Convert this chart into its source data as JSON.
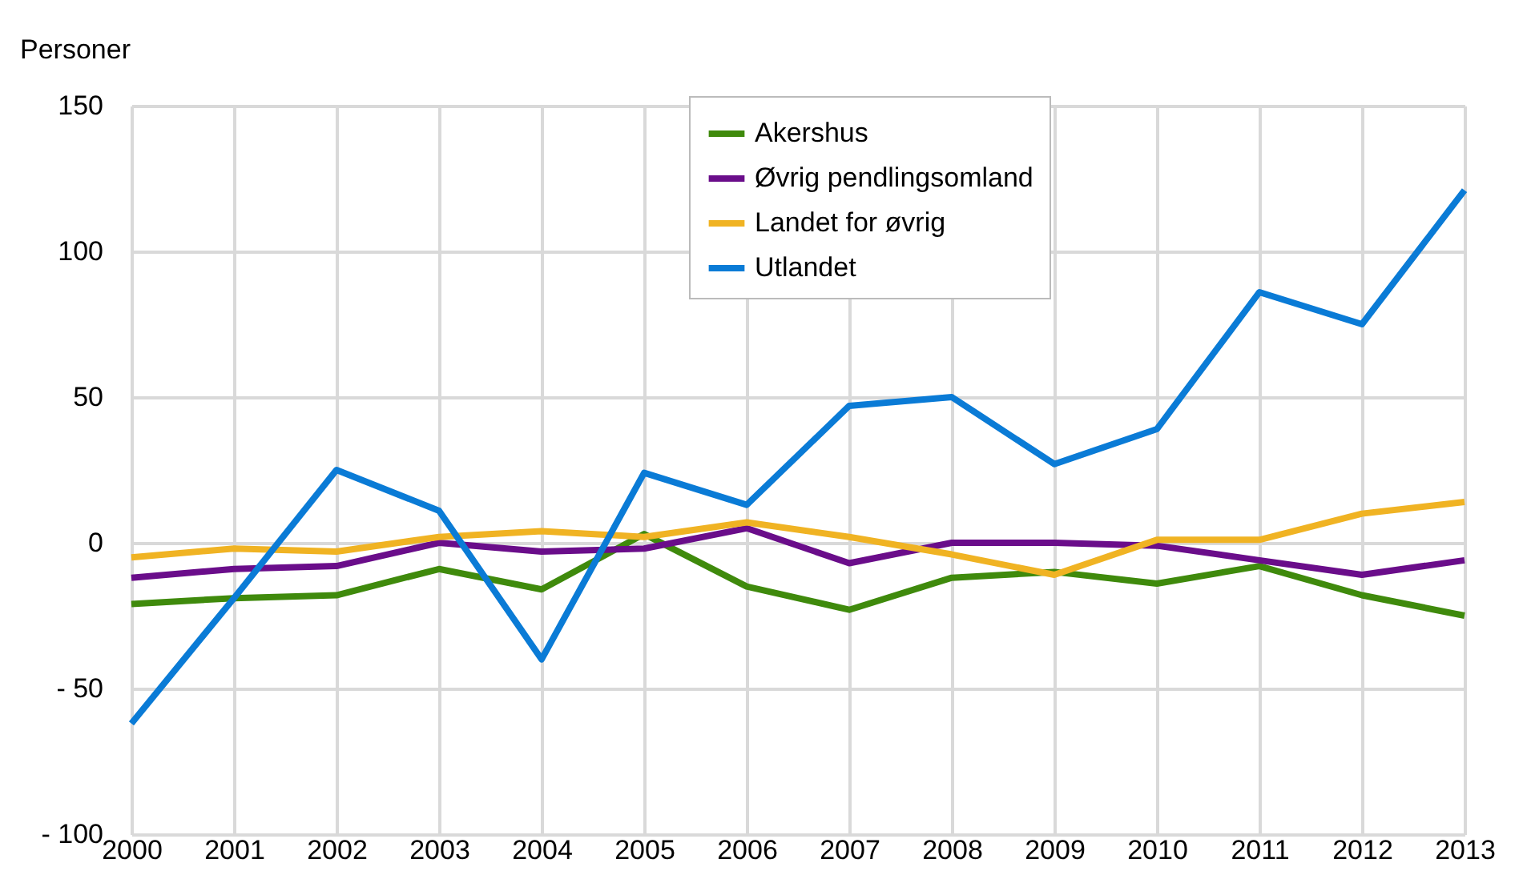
{
  "chart_data": {
    "type": "line",
    "ylabel": "Personer",
    "x": [
      2000,
      2001,
      2002,
      2003,
      2004,
      2005,
      2006,
      2007,
      2008,
      2009,
      2010,
      2011,
      2012,
      2013
    ],
    "xlim": [
      2000,
      2013
    ],
    "xticks": [
      2000,
      2001,
      2002,
      2003,
      2004,
      2005,
      2006,
      2007,
      2008,
      2009,
      2010,
      2011,
      2012,
      2013
    ],
    "ylim": [
      -100,
      150
    ],
    "yticks": [
      {
        "value": -100,
        "label": "- 100"
      },
      {
        "value": -50,
        "label": "- 50"
      },
      0,
      50,
      100,
      150
    ],
    "grid": true,
    "legend": "top",
    "marker": "none",
    "line_style": "solid",
    "series": [
      {
        "name": "Akershus",
        "color": "#3f8a0c",
        "values": [
          -21,
          -19,
          -18,
          -9,
          -16,
          3,
          -15,
          -23,
          -12,
          -10,
          -14,
          -8,
          -18,
          -25
        ]
      },
      {
        "name": "Øvrig pendlingsomland",
        "color": "#6a0d8a",
        "values": [
          -12,
          -9,
          -8,
          0,
          -3,
          -2,
          5,
          -7,
          0,
          0,
          -1,
          -6,
          -11,
          -6
        ]
      },
      {
        "name": "Landet for øvrig",
        "color": "#f0b323",
        "values": [
          -5,
          -2,
          -3,
          2,
          4,
          2,
          7,
          2,
          -4,
          -11,
          1,
          1,
          10,
          14
        ]
      },
      {
        "name": "Utlandet",
        "color": "#0a7bd6",
        "values": [
          -62,
          -19,
          25,
          11,
          -40,
          24,
          13,
          47,
          50,
          27,
          39,
          86,
          75,
          121
        ]
      }
    ]
  }
}
